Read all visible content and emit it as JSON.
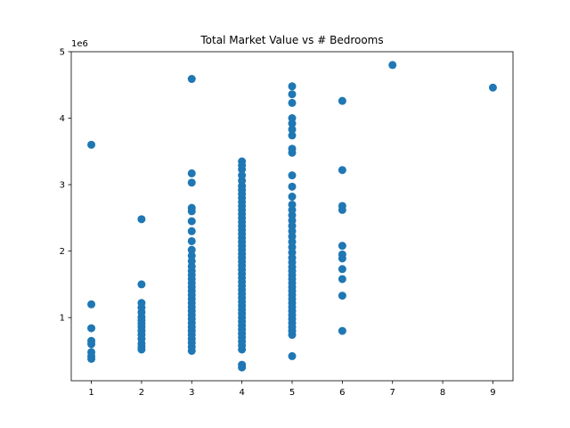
{
  "chart_data": {
    "type": "scatter",
    "title": "Total Market Value vs # Bedrooms",
    "xlabel": "",
    "ylabel": "",
    "y_offset_label": "1e6",
    "xlim": [
      0.6,
      9.4
    ],
    "ylim": [
      50000,
      5000000
    ],
    "x_ticks": [
      1,
      2,
      3,
      4,
      5,
      6,
      7,
      8,
      9
    ],
    "y_ticks": [
      1,
      2,
      3,
      4,
      5
    ],
    "y_tick_scale": 1000000,
    "grid": false,
    "marker_color": "#1f77b4",
    "series": [
      {
        "points": [
          [
            1,
            380000
          ],
          [
            1,
            420000
          ],
          [
            1,
            480000
          ],
          [
            1,
            600000
          ],
          [
            1,
            650000
          ],
          [
            1,
            840000
          ],
          [
            1,
            1200000
          ],
          [
            1,
            3600000
          ],
          [
            2,
            520000
          ],
          [
            2,
            560000
          ],
          [
            2,
            610000
          ],
          [
            2,
            680000
          ],
          [
            2,
            740000
          ],
          [
            2,
            800000
          ],
          [
            2,
            860000
          ],
          [
            2,
            910000
          ],
          [
            2,
            960000
          ],
          [
            2,
            1010000
          ],
          [
            2,
            1080000
          ],
          [
            2,
            1150000
          ],
          [
            2,
            1220000
          ],
          [
            2,
            1500000
          ],
          [
            2,
            2480000
          ],
          [
            3,
            500000
          ],
          [
            3,
            560000
          ],
          [
            3,
            620000
          ],
          [
            3,
            680000
          ],
          [
            3,
            740000
          ],
          [
            3,
            800000
          ],
          [
            3,
            860000
          ],
          [
            3,
            920000
          ],
          [
            3,
            980000
          ],
          [
            3,
            1040000
          ],
          [
            3,
            1100000
          ],
          [
            3,
            1160000
          ],
          [
            3,
            1220000
          ],
          [
            3,
            1280000
          ],
          [
            3,
            1340000
          ],
          [
            3,
            1400000
          ],
          [
            3,
            1460000
          ],
          [
            3,
            1520000
          ],
          [
            3,
            1580000
          ],
          [
            3,
            1640000
          ],
          [
            3,
            1700000
          ],
          [
            3,
            1770000
          ],
          [
            3,
            1850000
          ],
          [
            3,
            1930000
          ],
          [
            3,
            2020000
          ],
          [
            3,
            2150000
          ],
          [
            3,
            2300000
          ],
          [
            3,
            2450000
          ],
          [
            3,
            2600000
          ],
          [
            3,
            2650000
          ],
          [
            3,
            3030000
          ],
          [
            3,
            3170000
          ],
          [
            3,
            4590000
          ],
          [
            4,
            250000
          ],
          [
            4,
            290000
          ],
          [
            4,
            520000
          ],
          [
            4,
            580000
          ],
          [
            4,
            640000
          ],
          [
            4,
            700000
          ],
          [
            4,
            760000
          ],
          [
            4,
            820000
          ],
          [
            4,
            880000
          ],
          [
            4,
            940000
          ],
          [
            4,
            1000000
          ],
          [
            4,
            1060000
          ],
          [
            4,
            1120000
          ],
          [
            4,
            1180000
          ],
          [
            4,
            1240000
          ],
          [
            4,
            1300000
          ],
          [
            4,
            1360000
          ],
          [
            4,
            1420000
          ],
          [
            4,
            1480000
          ],
          [
            4,
            1540000
          ],
          [
            4,
            1600000
          ],
          [
            4,
            1660000
          ],
          [
            4,
            1720000
          ],
          [
            4,
            1780000
          ],
          [
            4,
            1840000
          ],
          [
            4,
            1900000
          ],
          [
            4,
            1960000
          ],
          [
            4,
            2020000
          ],
          [
            4,
            2080000
          ],
          [
            4,
            2140000
          ],
          [
            4,
            2200000
          ],
          [
            4,
            2260000
          ],
          [
            4,
            2320000
          ],
          [
            4,
            2380000
          ],
          [
            4,
            2440000
          ],
          [
            4,
            2500000
          ],
          [
            4,
            2560000
          ],
          [
            4,
            2620000
          ],
          [
            4,
            2680000
          ],
          [
            4,
            2740000
          ],
          [
            4,
            2800000
          ],
          [
            4,
            2860000
          ],
          [
            4,
            2920000
          ],
          [
            4,
            2980000
          ],
          [
            4,
            3060000
          ],
          [
            4,
            3140000
          ],
          [
            4,
            3230000
          ],
          [
            4,
            3290000
          ],
          [
            4,
            3350000
          ],
          [
            5,
            420000
          ],
          [
            5,
            740000
          ],
          [
            5,
            800000
          ],
          [
            5,
            860000
          ],
          [
            5,
            920000
          ],
          [
            5,
            980000
          ],
          [
            5,
            1040000
          ],
          [
            5,
            1100000
          ],
          [
            5,
            1160000
          ],
          [
            5,
            1220000
          ],
          [
            5,
            1280000
          ],
          [
            5,
            1340000
          ],
          [
            5,
            1400000
          ],
          [
            5,
            1460000
          ],
          [
            5,
            1520000
          ],
          [
            5,
            1580000
          ],
          [
            5,
            1640000
          ],
          [
            5,
            1700000
          ],
          [
            5,
            1760000
          ],
          [
            5,
            1830000
          ],
          [
            5,
            1900000
          ],
          [
            5,
            1980000
          ],
          [
            5,
            2060000
          ],
          [
            5,
            2140000
          ],
          [
            5,
            2220000
          ],
          [
            5,
            2300000
          ],
          [
            5,
            2380000
          ],
          [
            5,
            2460000
          ],
          [
            5,
            2540000
          ],
          [
            5,
            2620000
          ],
          [
            5,
            2700000
          ],
          [
            5,
            2820000
          ],
          [
            5,
            2970000
          ],
          [
            5,
            3140000
          ],
          [
            5,
            3480000
          ],
          [
            5,
            3540000
          ],
          [
            5,
            3740000
          ],
          [
            5,
            3830000
          ],
          [
            5,
            3920000
          ],
          [
            5,
            4000000
          ],
          [
            5,
            4230000
          ],
          [
            5,
            4360000
          ],
          [
            5,
            4480000
          ],
          [
            6,
            800000
          ],
          [
            6,
            1330000
          ],
          [
            6,
            1580000
          ],
          [
            6,
            1730000
          ],
          [
            6,
            1890000
          ],
          [
            6,
            1950000
          ],
          [
            6,
            2080000
          ],
          [
            6,
            2620000
          ],
          [
            6,
            2680000
          ],
          [
            6,
            3220000
          ],
          [
            6,
            4260000
          ],
          [
            7,
            4800000
          ],
          [
            9,
            4460000
          ]
        ]
      }
    ]
  }
}
